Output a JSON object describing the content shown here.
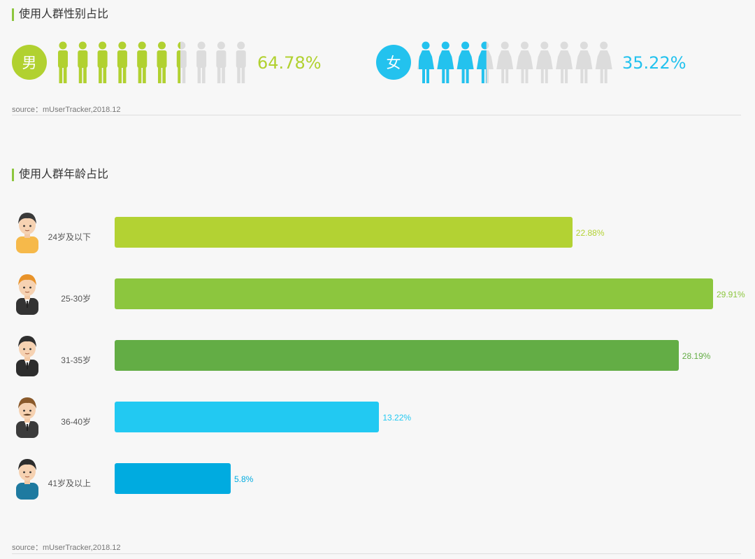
{
  "gender_section": {
    "title": "使用人群性别占比",
    "source": "source：mUserTracker,2018.12"
  },
  "age_section": {
    "title": "使用人群年龄占比",
    "source": "source：mUserTracker,2018.12"
  },
  "chart_data": [
    {
      "type": "pictograph",
      "categories": [
        "男",
        "女"
      ],
      "values": [
        64.78,
        35.22
      ],
      "labels": [
        "64.78%",
        "35.22%"
      ],
      "colors": [
        "#b1d130",
        "#23c2ee"
      ],
      "inactive_color": "#dcdcdc",
      "icon_names": [
        "male-figure-icon",
        "female-figure-icon"
      ]
    },
    {
      "type": "bar",
      "orientation": "horizontal",
      "categories": [
        "24岁及以下",
        "25-30岁",
        "31-35岁",
        "36-40岁",
        "41岁及以上"
      ],
      "values": [
        22.88,
        29.91,
        28.19,
        13.22,
        5.8
      ],
      "labels": [
        "22.88%",
        "29.91%",
        "28.19%",
        "13.22%",
        "5.8%"
      ],
      "colors": [
        "#b3d233",
        "#8cc63e",
        "#63ad45",
        "#22c9f2",
        "#00abe0"
      ],
      "icon_names": [
        "young-man-avatar-icon",
        "man-in-suit-avatar-icon",
        "businessman-avatar-icon",
        "mustache-man-avatar-icon",
        "older-man-avatar-icon"
      ]
    }
  ]
}
